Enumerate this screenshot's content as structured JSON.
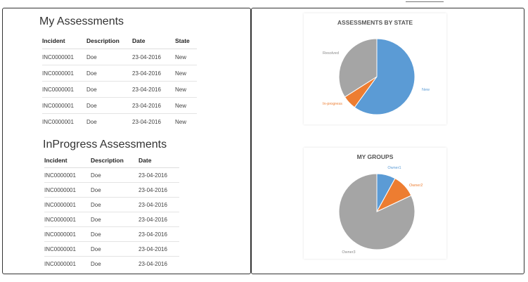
{
  "my_assessments": {
    "title": "My Assessments",
    "columns": [
      "Incident",
      "Description",
      "Date",
      "State"
    ],
    "rows": [
      [
        "INC0000001",
        "Doe",
        "23-04-2016",
        "New"
      ],
      [
        "INC0000001",
        "Doe",
        "23-04-2016",
        "New"
      ],
      [
        "INC0000001",
        "Doe",
        "23-04-2016",
        "New"
      ],
      [
        "INC0000001",
        "Doe",
        "23-04-2016",
        "New"
      ],
      [
        "INC0000001",
        "Doe",
        "23-04-2016",
        "New"
      ]
    ]
  },
  "inprogress_assessments": {
    "title": "InProgress Assessments",
    "columns": [
      "Incident",
      "Description",
      "Date"
    ],
    "rows": [
      [
        "INC0000001",
        "Doe",
        "23-04-2016"
      ],
      [
        "INC0000001",
        "Doe",
        "23-04-2016"
      ],
      [
        "INC0000001",
        "Doe",
        "23-04-2016"
      ],
      [
        "INC0000001",
        "Doe",
        "23-04-2016"
      ],
      [
        "INC0000001",
        "Doe",
        "23-04-2016"
      ],
      [
        "INC0000001",
        "Doe",
        "23-04-2016"
      ],
      [
        "INC0000001",
        "Doe",
        "23-04-2016"
      ]
    ]
  },
  "chart_data": [
    {
      "type": "pie",
      "title": "ASSESSMENTS BY STATE",
      "labels": [
        "New",
        "In-progress",
        "Resolved"
      ],
      "values": [
        60,
        6,
        34
      ],
      "colors": [
        "#5b9bd5",
        "#ed7d31",
        "#a5a5a5"
      ]
    },
    {
      "type": "pie",
      "title": "MY GROUPS",
      "labels": [
        "Owner1",
        "Owner2",
        "Owner3"
      ],
      "values": [
        8,
        10,
        82
      ],
      "colors": [
        "#5b9bd5",
        "#ed7d31",
        "#a5a5a5"
      ]
    }
  ]
}
